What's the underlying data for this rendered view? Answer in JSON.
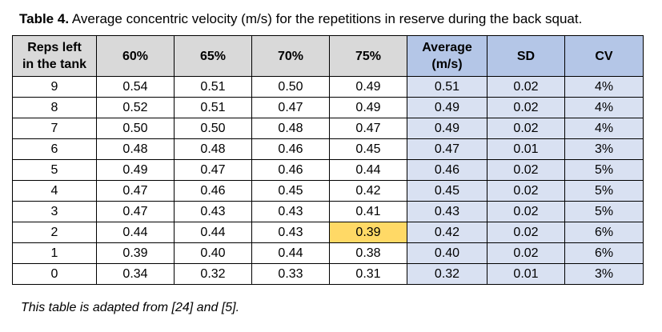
{
  "caption": {
    "label": "Table 4.",
    "text": " Average concentric velocity (m/s) for the repetitions in reserve during the back squat."
  },
  "table": {
    "headers": [
      "Reps left\nin the tank",
      "60%",
      "65%",
      "70%",
      "75%",
      "Average\n(m/s)",
      "SD",
      "CV"
    ],
    "rows": [
      [
        "9",
        "0.54",
        "0.51",
        "0.50",
        "0.49",
        "0.51",
        "0.02",
        "4%"
      ],
      [
        "8",
        "0.52",
        "0.51",
        "0.47",
        "0.49",
        "0.49",
        "0.02",
        "4%"
      ],
      [
        "7",
        "0.50",
        "0.50",
        "0.48",
        "0.47",
        "0.49",
        "0.02",
        "4%"
      ],
      [
        "6",
        "0.48",
        "0.48",
        "0.46",
        "0.45",
        "0.47",
        "0.01",
        "3%"
      ],
      [
        "5",
        "0.49",
        "0.47",
        "0.46",
        "0.44",
        "0.46",
        "0.02",
        "5%"
      ],
      [
        "4",
        "0.47",
        "0.46",
        "0.45",
        "0.42",
        "0.45",
        "0.02",
        "5%"
      ],
      [
        "3",
        "0.47",
        "0.43",
        "0.43",
        "0.41",
        "0.43",
        "0.02",
        "5%"
      ],
      [
        "2",
        "0.44",
        "0.44",
        "0.43",
        "0.39",
        "0.42",
        "0.02",
        "6%"
      ],
      [
        "1",
        "0.39",
        "0.40",
        "0.44",
        "0.38",
        "0.40",
        "0.02",
        "6%"
      ],
      [
        "0",
        "0.34",
        "0.32",
        "0.33",
        "0.31",
        "0.32",
        "0.01",
        "3%"
      ]
    ],
    "highlight": {
      "row": 7,
      "col": 4,
      "color": "#ffd966"
    },
    "colors": {
      "header": "#d9d9d9",
      "summary_header": "#b4c6e7",
      "summary_cell": "#d9e1f2"
    }
  },
  "footnote": "This table is adapted from [24] and [5]."
}
